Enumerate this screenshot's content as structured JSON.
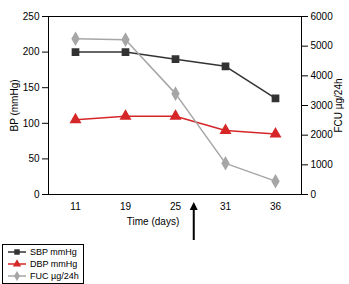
{
  "chart_data": {
    "type": "line",
    "x_label": "Time (days)",
    "y_label": "BP (mmHg)",
    "y2_label": "FCU µg/24h",
    "categories": [
      "11",
      "19",
      "25",
      "31",
      "36"
    ],
    "ylim": [
      0,
      250
    ],
    "yticks": [
      0,
      50,
      100,
      150,
      200,
      250
    ],
    "y2lim": [
      0,
      6000
    ],
    "y2ticks": [
      0,
      1000,
      2000,
      3000,
      4000,
      5000,
      6000
    ],
    "legend": "bottom left",
    "series": [
      {
        "name": "SBP mmHg",
        "color": "#333333",
        "marker": "square",
        "values": [
          200,
          200,
          190,
          180,
          135
        ]
      },
      {
        "name": "DBP mmHg",
        "color": "#d62728",
        "marker": "triangle",
        "values": [
          105,
          110,
          110,
          90,
          85
        ]
      },
      {
        "name": "FUC µg/24h",
        "color": "#a6a6a6",
        "marker": "diamond",
        "axis": "y2",
        "values": [
          5250,
          5220,
          3400,
          1050,
          450
        ]
      }
    ]
  }
}
